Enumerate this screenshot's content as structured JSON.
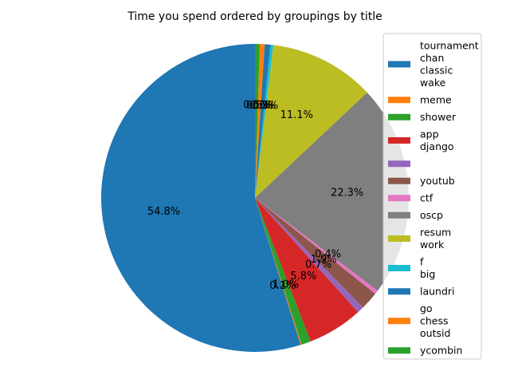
{
  "chart_data": {
    "type": "pie",
    "title": "Time you spend ordered by groupings by title",
    "start_angle_deg": 90,
    "direction": "counterclockwise",
    "autopct": "%1.1f%%",
    "legend_placement": "right",
    "slices": [
      {
        "label": [
          "tournament",
          "chan",
          "classic",
          "wake"
        ],
        "value": 54.8,
        "pct_label": "54.8%",
        "color": "#1f77b4"
      },
      {
        "label": [
          "meme"
        ],
        "value": 0.1,
        "pct_label": "0.1%",
        "color": "#ff7f0e"
      },
      {
        "label": [
          "shower"
        ],
        "value": 1.0,
        "pct_label": "1.0%",
        "color": "#2ca02c"
      },
      {
        "label": [
          "app",
          "django"
        ],
        "value": 5.8,
        "pct_label": "5.8%",
        "color": "#d62728"
      },
      {
        "label": [
          ""
        ],
        "value": 0.7,
        "pct_label": "0.7%",
        "color": "#9467bd"
      },
      {
        "label": [
          "youtub"
        ],
        "value": 1.9,
        "pct_label": "1.9%",
        "color": "#8c564b"
      },
      {
        "label": [
          "ctf"
        ],
        "value": 0.4,
        "pct_label": "0.4%",
        "color": "#e377c2"
      },
      {
        "label": [
          "oscp"
        ],
        "value": 22.3,
        "pct_label": "22.3%",
        "color": "#7f7f7f"
      },
      {
        "label": [
          "resum",
          "work"
        ],
        "value": 11.1,
        "pct_label": "11.1%",
        "color": "#bcbd22"
      },
      {
        "label": [
          "f",
          "big"
        ],
        "value": 0.3,
        "pct_label": "0.3%",
        "color": "#17becf"
      },
      {
        "label": [
          "laundri"
        ],
        "value": 0.6,
        "pct_label": "0.6%",
        "color": "#1f77b4"
      },
      {
        "label": [
          "go",
          "chess",
          "outsid"
        ],
        "value": 0.5,
        "pct_label": "0.5%",
        "color": "#ff7f0e"
      },
      {
        "label": [
          "ycombin"
        ],
        "value": 0.5,
        "pct_label": "0.5%",
        "color": "#2ca02c"
      }
    ]
  }
}
